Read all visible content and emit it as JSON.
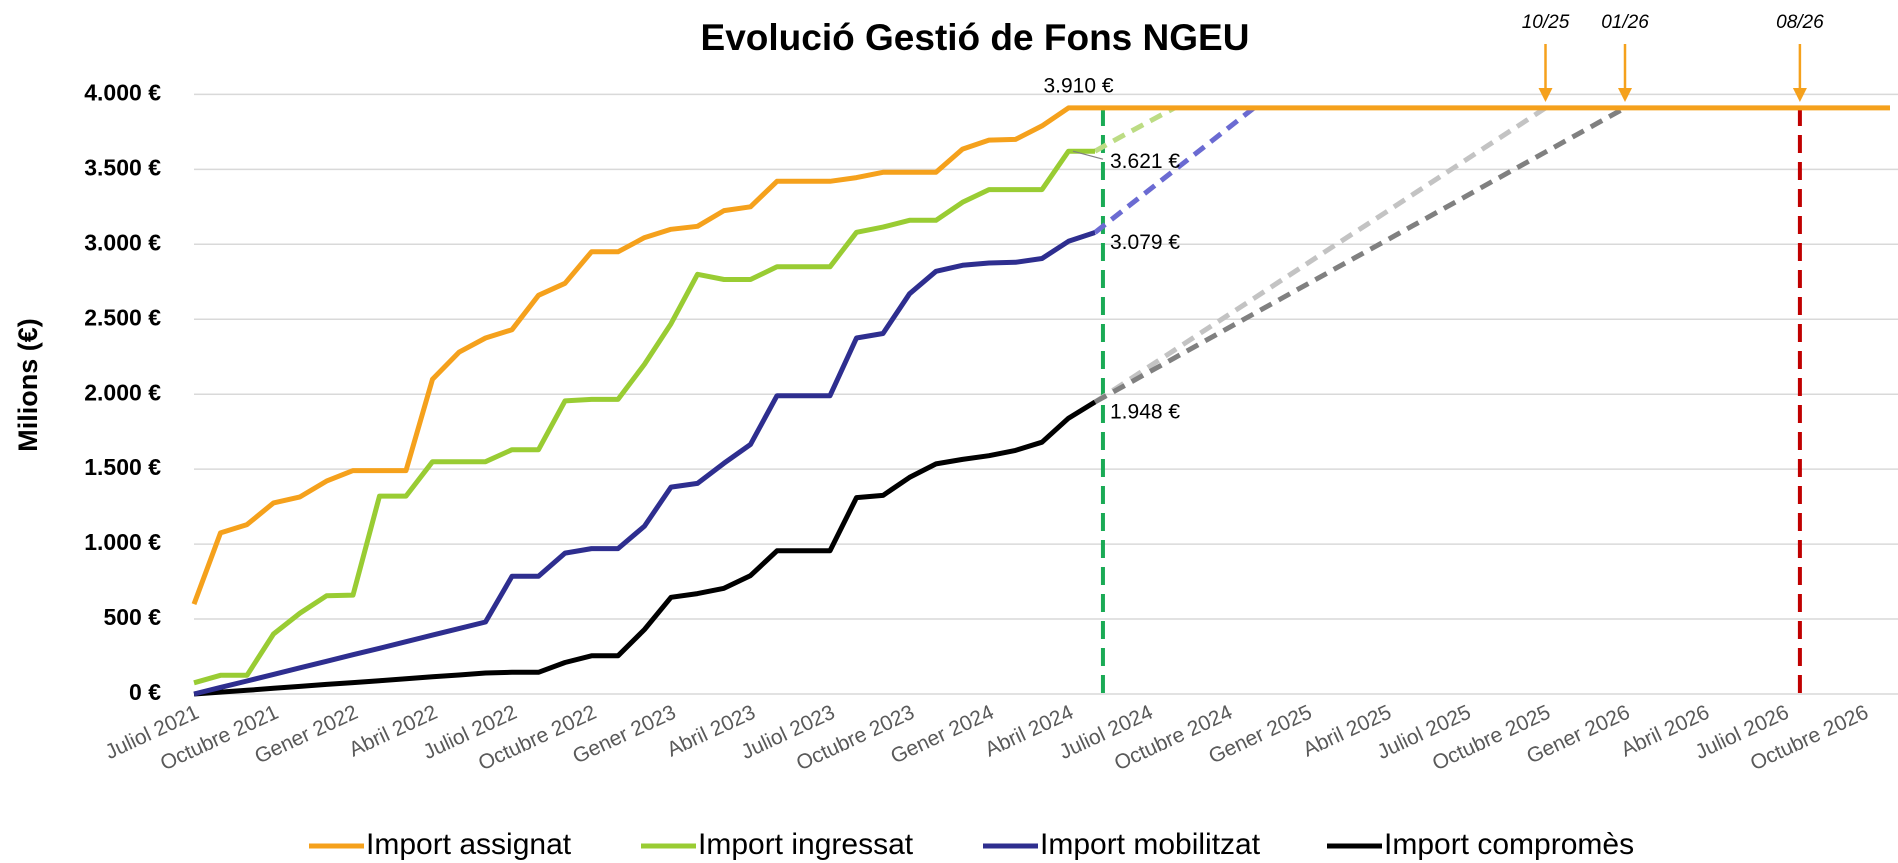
{
  "chart_data": {
    "type": "line",
    "title": "Evolució Gestió de Fons NGEU",
    "y_label": "Milions (€)",
    "categories": [
      "Juliol 2021",
      null,
      null,
      "Octubre 2021",
      null,
      null,
      "Gener 2022",
      null,
      null,
      "Abril 2022",
      null,
      null,
      "Juliol 2022",
      null,
      null,
      "Octubre 2022",
      null,
      null,
      "Gener 2023",
      null,
      null,
      "Abril 2023",
      null,
      null,
      "Juliol 2023",
      null,
      null,
      "Octubre 2023",
      null,
      null,
      "Gener 2024",
      null,
      null,
      "Abril 2024",
      null,
      null,
      "Juliol 2024",
      null,
      null,
      "Octubre 2024",
      null,
      null,
      "Gener 2025",
      null,
      null,
      "Abril 2025",
      null,
      null,
      "Juliol 2025",
      null,
      null,
      "Octubre 2025",
      null,
      null,
      "Gener 2026",
      null,
      null,
      "Abril 2026",
      null,
      null,
      "Juliol 2026",
      null,
      null,
      "Octubre 2026",
      null
    ],
    "ylim": [
      0,
      4000
    ],
    "yticks": [
      {
        "value": 0,
        "label": "0 €"
      },
      {
        "value": 500,
        "label": "500 €"
      },
      {
        "value": 1000,
        "label": "1.000 €"
      },
      {
        "value": 1500,
        "label": "1.500 €"
      },
      {
        "value": 2000,
        "label": "2.000 €"
      },
      {
        "value": 2500,
        "label": "2.500 €"
      },
      {
        "value": 3000,
        "label": "3.000 €"
      },
      {
        "value": 3500,
        "label": "3.500 €"
      },
      {
        "value": 4000,
        "label": "4.000 €"
      }
    ],
    "grid": true,
    "legend": "bottom",
    "series": [
      {
        "name": "Import assignat",
        "color": "#f5a11c",
        "values": [
          600,
          1075,
          1130,
          1275,
          1315,
          1420,
          1490,
          1490,
          1490,
          2100,
          2280,
          2375,
          2430,
          2660,
          2740,
          2950,
          2950,
          3045,
          3100,
          3120,
          3225,
          3250,
          3420,
          3420,
          3420,
          3445,
          3480,
          3480,
          3480,
          3635,
          3695,
          3700,
          3790,
          3910,
          3910,
          3910,
          3910,
          3910,
          3910,
          3910,
          3910,
          3910,
          3910,
          3910,
          3910,
          3910,
          3910,
          3910,
          3910,
          3910,
          3910,
          3910,
          3910,
          3910,
          3910,
          3910,
          3910,
          3910,
          3910,
          3910,
          3910,
          3910,
          3910,
          3910,
          3910
        ],
        "value_labels": [
          null,
          null,
          null,
          null,
          null,
          null,
          null,
          null,
          null,
          null,
          null,
          null,
          null,
          null,
          null,
          null,
          null,
          null,
          null,
          null,
          null,
          null,
          null,
          null,
          null,
          null,
          null,
          null,
          null,
          null,
          null,
          null,
          null,
          "3.910 €",
          null,
          null,
          null,
          null,
          null,
          null,
          null,
          null,
          null,
          null,
          null,
          null,
          null,
          null,
          null,
          null,
          null,
          null,
          null,
          null,
          null,
          null,
          null,
          null,
          null,
          null,
          null,
          null,
          null,
          null,
          null
        ]
      },
      {
        "name": "Import ingressat",
        "color": "#99cc33",
        "values": [
          75,
          125,
          125,
          400,
          540,
          655,
          660,
          1320,
          1320,
          1550,
          1550,
          1550,
          1630,
          1630,
          1955,
          1965,
          1965,
          2200,
          2470,
          2800,
          2765,
          2765,
          2850,
          2850,
          2850,
          3080,
          3115,
          3160,
          3160,
          3280,
          3365,
          3365,
          3365,
          3621,
          3621,
          null,
          null,
          null,
          null,
          null,
          null,
          null,
          null,
          null,
          null,
          null,
          null,
          null,
          null,
          null,
          null,
          null,
          null,
          null,
          null,
          null,
          null,
          null,
          null,
          null,
          null,
          null,
          null,
          null,
          null
        ],
        "value_labels": [
          null,
          null,
          null,
          null,
          null,
          null,
          null,
          null,
          null,
          null,
          null,
          null,
          null,
          null,
          null,
          null,
          null,
          null,
          null,
          null,
          null,
          null,
          null,
          null,
          null,
          null,
          null,
          null,
          null,
          null,
          null,
          null,
          null,
          null,
          "3.621 €",
          null,
          null,
          null,
          null,
          null,
          null,
          null,
          null,
          null,
          null,
          null,
          null,
          null,
          null,
          null,
          null,
          null,
          null,
          null,
          null,
          null,
          null,
          null,
          null,
          null,
          null,
          null,
          null,
          null,
          null
        ]
      },
      {
        "name": "Import mobilitzat",
        "color": "#2e2e8f",
        "values": [
          0,
          44,
          87,
          131,
          175,
          218,
          262,
          305,
          349,
          393,
          436,
          480,
          785,
          785,
          940,
          970,
          970,
          1120,
          1380,
          1405,
          1540,
          1665,
          1990,
          1990,
          1990,
          2375,
          2405,
          2670,
          2820,
          2860,
          2875,
          2880,
          2905,
          3020,
          3079,
          null,
          null,
          null,
          null,
          null,
          null,
          null,
          null,
          null,
          null,
          null,
          null,
          null,
          null,
          null,
          null,
          null,
          null,
          null,
          null,
          null,
          null,
          null,
          null,
          null,
          null,
          null,
          null,
          null,
          null
        ],
        "value_labels": [
          null,
          null,
          null,
          null,
          null,
          null,
          null,
          null,
          null,
          null,
          null,
          null,
          null,
          null,
          null,
          null,
          null,
          null,
          null,
          null,
          null,
          null,
          null,
          null,
          null,
          null,
          null,
          null,
          null,
          null,
          null,
          null,
          null,
          null,
          "3.079 €",
          null,
          null,
          null,
          null,
          null,
          null,
          null,
          null,
          null,
          null,
          null,
          null,
          null,
          null,
          null,
          null,
          null,
          null,
          null,
          null,
          null,
          null,
          null,
          null,
          null,
          null,
          null,
          null,
          null,
          null
        ]
      },
      {
        "name": "Import compromès",
        "color": "#000000",
        "values": [
          0,
          13,
          25,
          38,
          51,
          64,
          76,
          89,
          102,
          115,
          127,
          140,
          145,
          145,
          210,
          255,
          255,
          430,
          645,
          670,
          705,
          790,
          955,
          955,
          955,
          1310,
          1325,
          1445,
          1535,
          1565,
          1590,
          1625,
          1680,
          1840,
          1948,
          null,
          null,
          null,
          null,
          null,
          null,
          null,
          null,
          null,
          null,
          null,
          null,
          null,
          null,
          null,
          null,
          null,
          null,
          null,
          null,
          null,
          null,
          null,
          null,
          null,
          null,
          null,
          null,
          null,
          null
        ],
        "value_labels": [
          null,
          null,
          null,
          null,
          null,
          null,
          null,
          null,
          null,
          null,
          null,
          null,
          null,
          null,
          null,
          null,
          null,
          null,
          null,
          null,
          null,
          null,
          null,
          null,
          null,
          null,
          null,
          null,
          null,
          null,
          null,
          null,
          null,
          null,
          "1.948 €",
          null,
          null,
          null,
          null,
          null,
          null,
          null,
          null,
          null,
          null,
          null,
          null,
          null,
          null,
          null,
          null,
          null,
          null,
          null,
          null,
          null,
          null,
          null,
          null,
          null,
          null,
          null,
          null,
          null,
          null
        ]
      },
      {
        "color": "#bcdc84",
        "dashed": true,
        "values": [
          null,
          null,
          null,
          null,
          null,
          null,
          null,
          null,
          null,
          null,
          null,
          null,
          null,
          null,
          null,
          null,
          null,
          null,
          null,
          null,
          null,
          null,
          null,
          null,
          null,
          null,
          null,
          null,
          null,
          null,
          null,
          null,
          null,
          null,
          3621,
          3720,
          3815,
          3910,
          null,
          null,
          null,
          null,
          null,
          null,
          null,
          null,
          null,
          null,
          null,
          null,
          null,
          null,
          null,
          null,
          null,
          null,
          null,
          null,
          null,
          null,
          null,
          null,
          null,
          null,
          null
        ]
      },
      {
        "color": "#6b6bd2",
        "dashed": true,
        "values": [
          null,
          null,
          null,
          null,
          null,
          null,
          null,
          null,
          null,
          null,
          null,
          null,
          null,
          null,
          null,
          null,
          null,
          null,
          null,
          null,
          null,
          null,
          null,
          null,
          null,
          null,
          null,
          null,
          null,
          null,
          null,
          null,
          null,
          null,
          3079,
          3218,
          3356,
          3495,
          3633,
          3772,
          3910,
          null,
          null,
          null,
          null,
          null,
          null,
          null,
          null,
          null,
          null,
          null,
          null,
          null,
          null,
          null,
          null,
          null,
          null,
          null,
          null,
          null,
          null,
          null,
          null
        ]
      },
      {
        "color": "#c3c3c3",
        "dashed": true,
        "values": [
          null,
          null,
          null,
          null,
          null,
          null,
          null,
          null,
          null,
          null,
          null,
          null,
          null,
          null,
          null,
          null,
          null,
          null,
          null,
          null,
          null,
          null,
          null,
          null,
          null,
          null,
          null,
          null,
          null,
          null,
          null,
          null,
          null,
          null,
          1948,
          2063,
          2179,
          2294,
          2410,
          2525,
          2640,
          2756,
          2871,
          2987,
          3102,
          3217,
          3333,
          3448,
          3564,
          3679,
          3794,
          3910,
          null,
          null,
          null,
          null,
          null,
          null,
          null,
          null,
          null,
          null,
          null,
          null,
          null
        ]
      },
      {
        "color": "#808080",
        "dashed": true,
        "values": [
          null,
          null,
          null,
          null,
          null,
          null,
          null,
          null,
          null,
          null,
          null,
          null,
          null,
          null,
          null,
          null,
          null,
          null,
          null,
          null,
          null,
          null,
          null,
          null,
          null,
          null,
          null,
          null,
          null,
          null,
          null,
          null,
          null,
          null,
          1948,
          2046,
          2144,
          2242,
          2340,
          2439,
          2537,
          2635,
          2733,
          2831,
          2929,
          3027,
          3125,
          3223,
          3321,
          3420,
          3518,
          3616,
          3714,
          3812,
          3910,
          null,
          null,
          null,
          null,
          null,
          null,
          null,
          null,
          null,
          null
        ]
      }
    ],
    "vlines": [
      {
        "x": 34.3,
        "color": "#1aaa55"
      },
      {
        "x": 60.6,
        "color": "#c00000"
      }
    ],
    "annotations": [
      {
        "text": "10/25",
        "x": 51,
        "color": "#f5a11c"
      },
      {
        "text": "01/26",
        "x": 54,
        "color": "#f5a11c"
      },
      {
        "text": "08/26",
        "x": 60.6,
        "color": "#f5a11c"
      }
    ]
  }
}
